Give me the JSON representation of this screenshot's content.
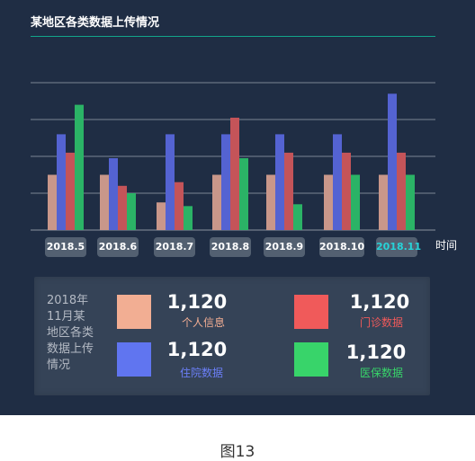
{
  "header": {
    "title": "某地区各类数据上传情况"
  },
  "x_axis_unit": "时间",
  "chart_data": {
    "type": "bar",
    "title": "某地区各类数据上传情况",
    "xlabel": "时间",
    "ylabel": "",
    "categories": [
      "2018.5",
      "2018.6",
      "2018.7",
      "2018.8",
      "2018.9",
      "2018.10",
      "2018.11"
    ],
    "active_category": "2018.11",
    "ylim": [
      0,
      8
    ],
    "grid": true,
    "series": [
      {
        "color": "#c9978a",
        "values": [
          3,
          3,
          1.5,
          3,
          3,
          3,
          3
        ]
      },
      {
        "color": "#5463d2",
        "values": [
          5.2,
          3.9,
          5.2,
          5.2,
          5.2,
          5.2,
          7.4
        ]
      },
      {
        "color": "#c45459",
        "values": [
          4.2,
          2.4,
          2.6,
          6.1,
          4.2,
          4.2,
          4.2
        ]
      },
      {
        "color": "#2bb366",
        "values": [
          6.8,
          2.0,
          1.3,
          3.9,
          1.4,
          3.0,
          3.0
        ]
      }
    ]
  },
  "summary": {
    "label": "2018年11月某地区各类数据上传情况",
    "items": [
      {
        "value": "1,120",
        "name": "个人信息",
        "color": "#f2ae93",
        "text_color": "#f2ae93"
      },
      {
        "value": "1,120",
        "name": "门诊数据",
        "color": "#f05a5a",
        "text_color": "#f05a5a"
      },
      {
        "value": "1,120",
        "name": "住院数据",
        "color": "#6075f0",
        "text_color": "#6b7ff7"
      },
      {
        "value": "1,120",
        "name": "医保数据",
        "color": "#38d46a",
        "text_color": "#38d46a"
      }
    ]
  },
  "caption": "图13"
}
